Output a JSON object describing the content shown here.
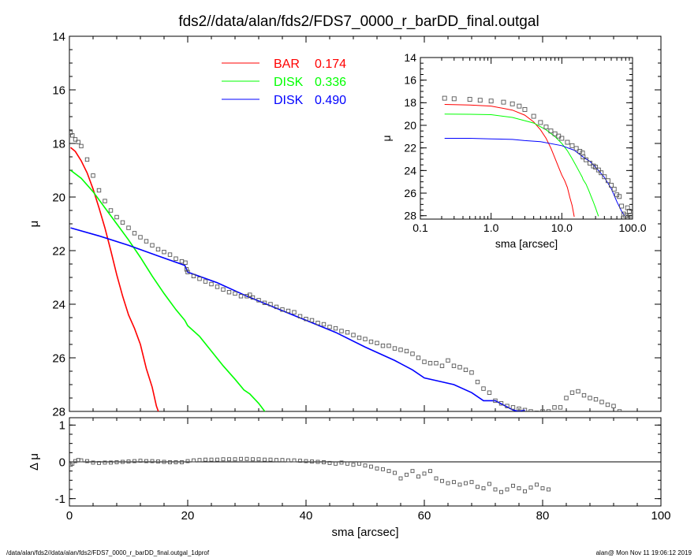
{
  "title": "fds2//data/alan/fds2/FDS7_0000_r_barDD_final.outgal",
  "footer_left": "/data/alan/fds2//data/alan/fds2/FDS7_0000_r_barDD_final.outgal_1dprof",
  "footer_right": "alan@  Mon Nov 11 19:06:12 2019",
  "colors": {
    "bar": "#ff0000",
    "disk1": "#00ff00",
    "disk2": "#0000ff",
    "data": "#808080"
  },
  "chart_data": [
    {
      "type": "line",
      "panel": "main",
      "title": "fds2//data/alan/fds2/FDS7_0000_r_barDD_final.outgal",
      "xlabel": "",
      "ylabel": "μ",
      "xlim": [
        0,
        100
      ],
      "ylim": [
        28,
        14
      ],
      "xticks": [
        0,
        20,
        40,
        60,
        80,
        100
      ],
      "yticks": [
        14,
        16,
        18,
        20,
        22,
        24,
        26,
        28
      ],
      "legend": [
        {
          "name": "BAR",
          "value": "0.174",
          "color": "#ff0000"
        },
        {
          "name": "DISK",
          "value": "0.336",
          "color": "#00ff00"
        },
        {
          "name": "DISK",
          "value": "0.490",
          "color": "#0000ff"
        }
      ],
      "series": [
        {
          "name": "BAR",
          "x": [
            0.2,
            1,
            2,
            3,
            4,
            5,
            6,
            7,
            8,
            9,
            10,
            11,
            12,
            13,
            14,
            14.7,
            15.2
          ],
          "y": [
            18.15,
            18.3,
            18.65,
            19.1,
            19.7,
            20.4,
            21.15,
            22.0,
            22.9,
            23.7,
            24.4,
            24.9,
            25.5,
            26.4,
            27.1,
            27.8,
            28.1
          ]
        },
        {
          "name": "DISK 0.336",
          "x": [
            0.2,
            2,
            4,
            6,
            8,
            10,
            12,
            14,
            16,
            18,
            19.5,
            20,
            22,
            24,
            26,
            28,
            29.5,
            30.5,
            32,
            33.2
          ],
          "y": [
            19.0,
            19.3,
            19.8,
            20.4,
            21.0,
            21.6,
            22.25,
            22.95,
            23.6,
            24.2,
            24.6,
            24.8,
            25.2,
            25.75,
            26.3,
            26.8,
            27.2,
            27.35,
            27.7,
            28.05
          ]
        },
        {
          "name": "DISK 0.490",
          "x": [
            0.2,
            5,
            10,
            15,
            19.5,
            20,
            25,
            30,
            35,
            40,
            45,
            50,
            55,
            58,
            60,
            62,
            65,
            68,
            70,
            72,
            75,
            76,
            77
          ],
          "y": [
            21.15,
            21.45,
            21.8,
            22.2,
            22.55,
            22.8,
            23.2,
            23.7,
            24.15,
            24.6,
            25.05,
            25.6,
            26.1,
            26.45,
            26.75,
            26.85,
            27.0,
            27.3,
            27.6,
            27.6,
            27.95,
            28.0,
            27.95
          ]
        },
        {
          "name": "data",
          "x": [
            0.2,
            0.5,
            1,
            1.5,
            2,
            3,
            4,
            5,
            6,
            7,
            8,
            9,
            10,
            11,
            12,
            13,
            14,
            15,
            16,
            17,
            18,
            19,
            19.6,
            19.8,
            20,
            21,
            22,
            23,
            24,
            25,
            26,
            27,
            28,
            29,
            30,
            30.5,
            31,
            32,
            33,
            34,
            35,
            36,
            37,
            38,
            39,
            40,
            41,
            42,
            43,
            44,
            45,
            46,
            47,
            48,
            49,
            50,
            51,
            52,
            53,
            54,
            55,
            56,
            57,
            58,
            59,
            60,
            61,
            62,
            63,
            64,
            65,
            66,
            67,
            68,
            69,
            70,
            71,
            72,
            73,
            74,
            75,
            76,
            77,
            78,
            79,
            80,
            81,
            82,
            83,
            84,
            85,
            86,
            87,
            88,
            89,
            90,
            91,
            92,
            93
          ],
          "y": [
            17.6,
            17.7,
            17.85,
            17.95,
            18.1,
            18.6,
            19.2,
            19.75,
            20.15,
            20.5,
            20.75,
            20.95,
            21.15,
            21.35,
            21.5,
            21.65,
            21.8,
            21.95,
            22.05,
            22.15,
            22.3,
            22.4,
            22.45,
            22.7,
            22.8,
            22.95,
            23.05,
            23.15,
            23.25,
            23.35,
            23.45,
            23.55,
            23.6,
            23.7,
            23.7,
            23.65,
            23.75,
            23.85,
            23.95,
            24.0,
            24.1,
            24.2,
            24.25,
            24.3,
            24.45,
            24.55,
            24.6,
            24.7,
            24.75,
            24.85,
            24.9,
            25.0,
            25.05,
            25.15,
            25.25,
            25.3,
            25.4,
            25.45,
            25.55,
            25.55,
            25.65,
            25.7,
            25.75,
            25.85,
            26.0,
            26.15,
            26.2,
            26.2,
            26.3,
            26.1,
            26.3,
            26.35,
            26.45,
            26.55,
            26.9,
            27.15,
            27.3,
            27.6,
            27.7,
            27.8,
            27.85,
            27.9,
            27.95,
            28.0,
            28.05,
            28.0,
            28.0,
            27.85,
            27.85,
            27.5,
            27.3,
            27.25,
            27.4,
            27.5,
            27.55,
            27.65,
            27.75,
            27.8,
            28.0
          ]
        }
      ]
    },
    {
      "type": "scatter",
      "panel": "residual",
      "xlabel": "sma [arcsec]",
      "ylabel": "Δ μ",
      "xlim": [
        0,
        100
      ],
      "ylim": [
        -1.2,
        1.2
      ],
      "xticks": [
        0,
        20,
        40,
        60,
        80,
        100
      ],
      "yticks": [
        1,
        0,
        -1
      ],
      "series": [
        {
          "name": "residual",
          "x": [
            0.2,
            0.5,
            1,
            1.5,
            2,
            3,
            4,
            5,
            6,
            7,
            8,
            9,
            10,
            11,
            12,
            13,
            14,
            15,
            16,
            17,
            18,
            19,
            20,
            21,
            22,
            23,
            24,
            25,
            26,
            27,
            28,
            29,
            30,
            31,
            32,
            33,
            34,
            35,
            36,
            37,
            38,
            39,
            40,
            41,
            42,
            43,
            44,
            45,
            46,
            47,
            48,
            49,
            50,
            51,
            52,
            53,
            54,
            55,
            56,
            57,
            58,
            59,
            60,
            61,
            62,
            63,
            64,
            65,
            66,
            67,
            68,
            69,
            70,
            71,
            72,
            73,
            74,
            75,
            76,
            77,
            78,
            79,
            80,
            81
          ],
          "y": [
            -0.08,
            -0.05,
            0.02,
            0.05,
            0.04,
            0.02,
            -0.02,
            -0.03,
            -0.02,
            -0.02,
            -0.01,
            0.0,
            0.01,
            0.02,
            0.03,
            0.02,
            0.02,
            0.01,
            0.0,
            -0.01,
            -0.01,
            -0.01,
            0.02,
            0.04,
            0.05,
            0.06,
            0.06,
            0.06,
            0.07,
            0.07,
            0.07,
            0.08,
            0.08,
            0.07,
            0.07,
            0.06,
            0.06,
            0.05,
            0.05,
            0.04,
            0.04,
            0.03,
            0.02,
            0.01,
            0.0,
            -0.01,
            -0.03,
            -0.05,
            -0.02,
            -0.05,
            -0.08,
            -0.05,
            -0.1,
            -0.13,
            -0.18,
            -0.2,
            -0.25,
            -0.3,
            -0.45,
            -0.35,
            -0.25,
            -0.4,
            -0.32,
            -0.25,
            -0.45,
            -0.52,
            -0.58,
            -0.55,
            -0.62,
            -0.58,
            -0.55,
            -0.68,
            -0.72,
            -0.6,
            -0.75,
            -0.82,
            -0.75,
            -0.65,
            -0.72,
            -0.8,
            -0.7,
            -0.62,
            -0.72,
            -0.75
          ]
        }
      ]
    },
    {
      "type": "line",
      "panel": "inset",
      "xlabel": "sma [arcsec]",
      "ylabel": "μ",
      "xscale": "log",
      "xlim": [
        0.1,
        100
      ],
      "ylim": [
        28.3,
        14
      ],
      "xticks": [
        0.1,
        1.0,
        10.0,
        100.0
      ],
      "xticklabels": [
        "0.1",
        "1.0",
        "10.0",
        "100.0"
      ],
      "yticks": [
        14,
        16,
        18,
        20,
        22,
        24,
        26,
        28
      ],
      "series": [
        {
          "name": "BAR",
          "x": [
            0.22,
            0.5,
            1,
            2,
            3,
            4,
            5,
            6,
            7,
            8,
            9,
            10,
            11,
            12,
            13,
            14,
            15
          ],
          "y": [
            18.15,
            18.2,
            18.3,
            18.65,
            19.1,
            19.7,
            20.4,
            21.15,
            22.0,
            22.9,
            23.7,
            24.4,
            24.9,
            25.5,
            26.4,
            27.1,
            28.1
          ]
        },
        {
          "name": "DISK 0.336",
          "x": [
            0.22,
            0.5,
            1,
            2,
            4,
            6,
            8,
            10,
            12,
            14,
            16,
            18,
            19.5,
            20,
            22,
            24,
            26,
            28,
            30,
            33
          ],
          "y": [
            19.0,
            19.02,
            19.06,
            19.3,
            19.8,
            20.4,
            21.0,
            21.6,
            22.25,
            22.95,
            23.6,
            24.2,
            24.6,
            24.8,
            25.2,
            25.75,
            26.3,
            26.8,
            27.3,
            28.05
          ]
        },
        {
          "name": "DISK 0.490",
          "x": [
            0.22,
            0.5,
            1,
            2,
            3,
            5,
            10,
            15,
            20,
            25,
            30,
            40,
            50,
            60,
            70,
            77
          ],
          "y": [
            21.15,
            21.15,
            21.2,
            21.25,
            21.35,
            21.45,
            21.8,
            22.2,
            22.8,
            23.2,
            23.7,
            24.6,
            25.6,
            26.75,
            27.6,
            28.0
          ]
        },
        {
          "name": "data",
          "x": [
            0.22,
            0.3,
            0.5,
            0.7,
            1,
            1.5,
            2,
            2.5,
            3,
            4,
            5,
            6,
            7,
            8,
            9,
            10,
            12,
            14,
            16,
            18,
            19.6,
            20,
            22,
            25,
            28,
            30,
            33,
            36,
            40,
            45,
            50,
            55,
            60,
            65,
            70,
            75,
            80,
            85,
            90,
            93
          ],
          "y": [
            17.6,
            17.65,
            17.7,
            17.78,
            17.85,
            17.95,
            18.1,
            18.3,
            18.6,
            19.2,
            19.75,
            20.15,
            20.5,
            20.75,
            20.95,
            21.15,
            21.5,
            21.8,
            22.05,
            22.3,
            22.45,
            22.8,
            23.05,
            23.35,
            23.6,
            23.7,
            23.95,
            24.2,
            24.55,
            24.9,
            25.3,
            25.65,
            26.15,
            26.3,
            27.15,
            27.85,
            28.0,
            27.3,
            27.6,
            28.0
          ]
        }
      ]
    }
  ]
}
